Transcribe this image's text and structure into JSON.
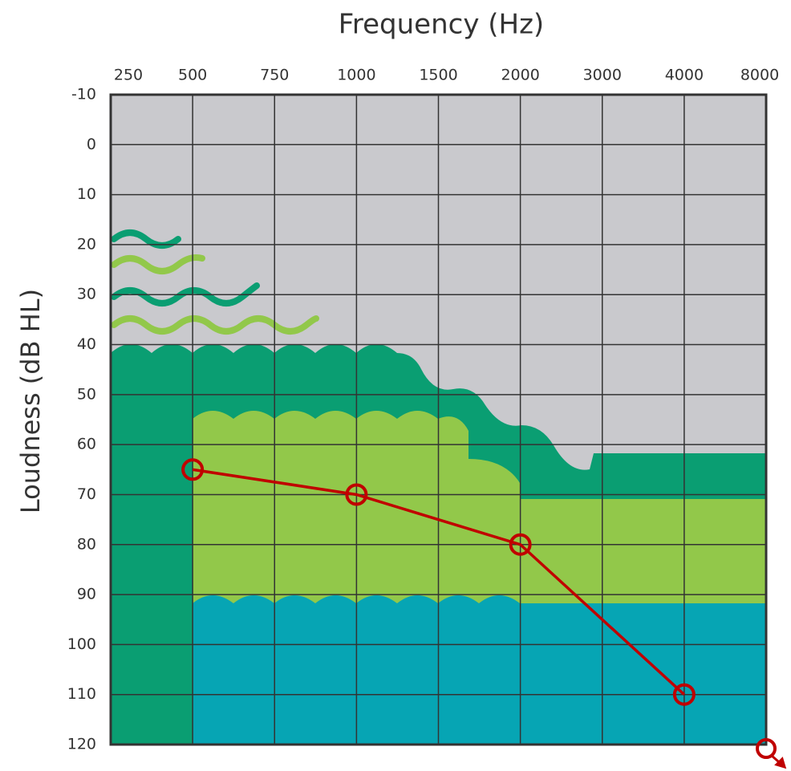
{
  "chart_data": {
    "type": "line",
    "title": "Frequency (Hz)",
    "y_label": "Loudness (dB HL)",
    "xticks": [
      250,
      500,
      750,
      1000,
      1500,
      2000,
      3000,
      4000,
      8000
    ],
    "ylim": [
      -10,
      120
    ],
    "y_reversed": true,
    "yticks": [
      -10,
      0,
      10,
      20,
      30,
      40,
      50,
      60,
      70,
      80,
      90,
      100,
      110,
      120
    ],
    "grid": true,
    "series": [
      {
        "color": "#c00000",
        "x": [
          500,
          1000,
          2000,
          4000
        ],
        "values": [
          65,
          70,
          80,
          110
        ]
      }
    ]
  }
}
